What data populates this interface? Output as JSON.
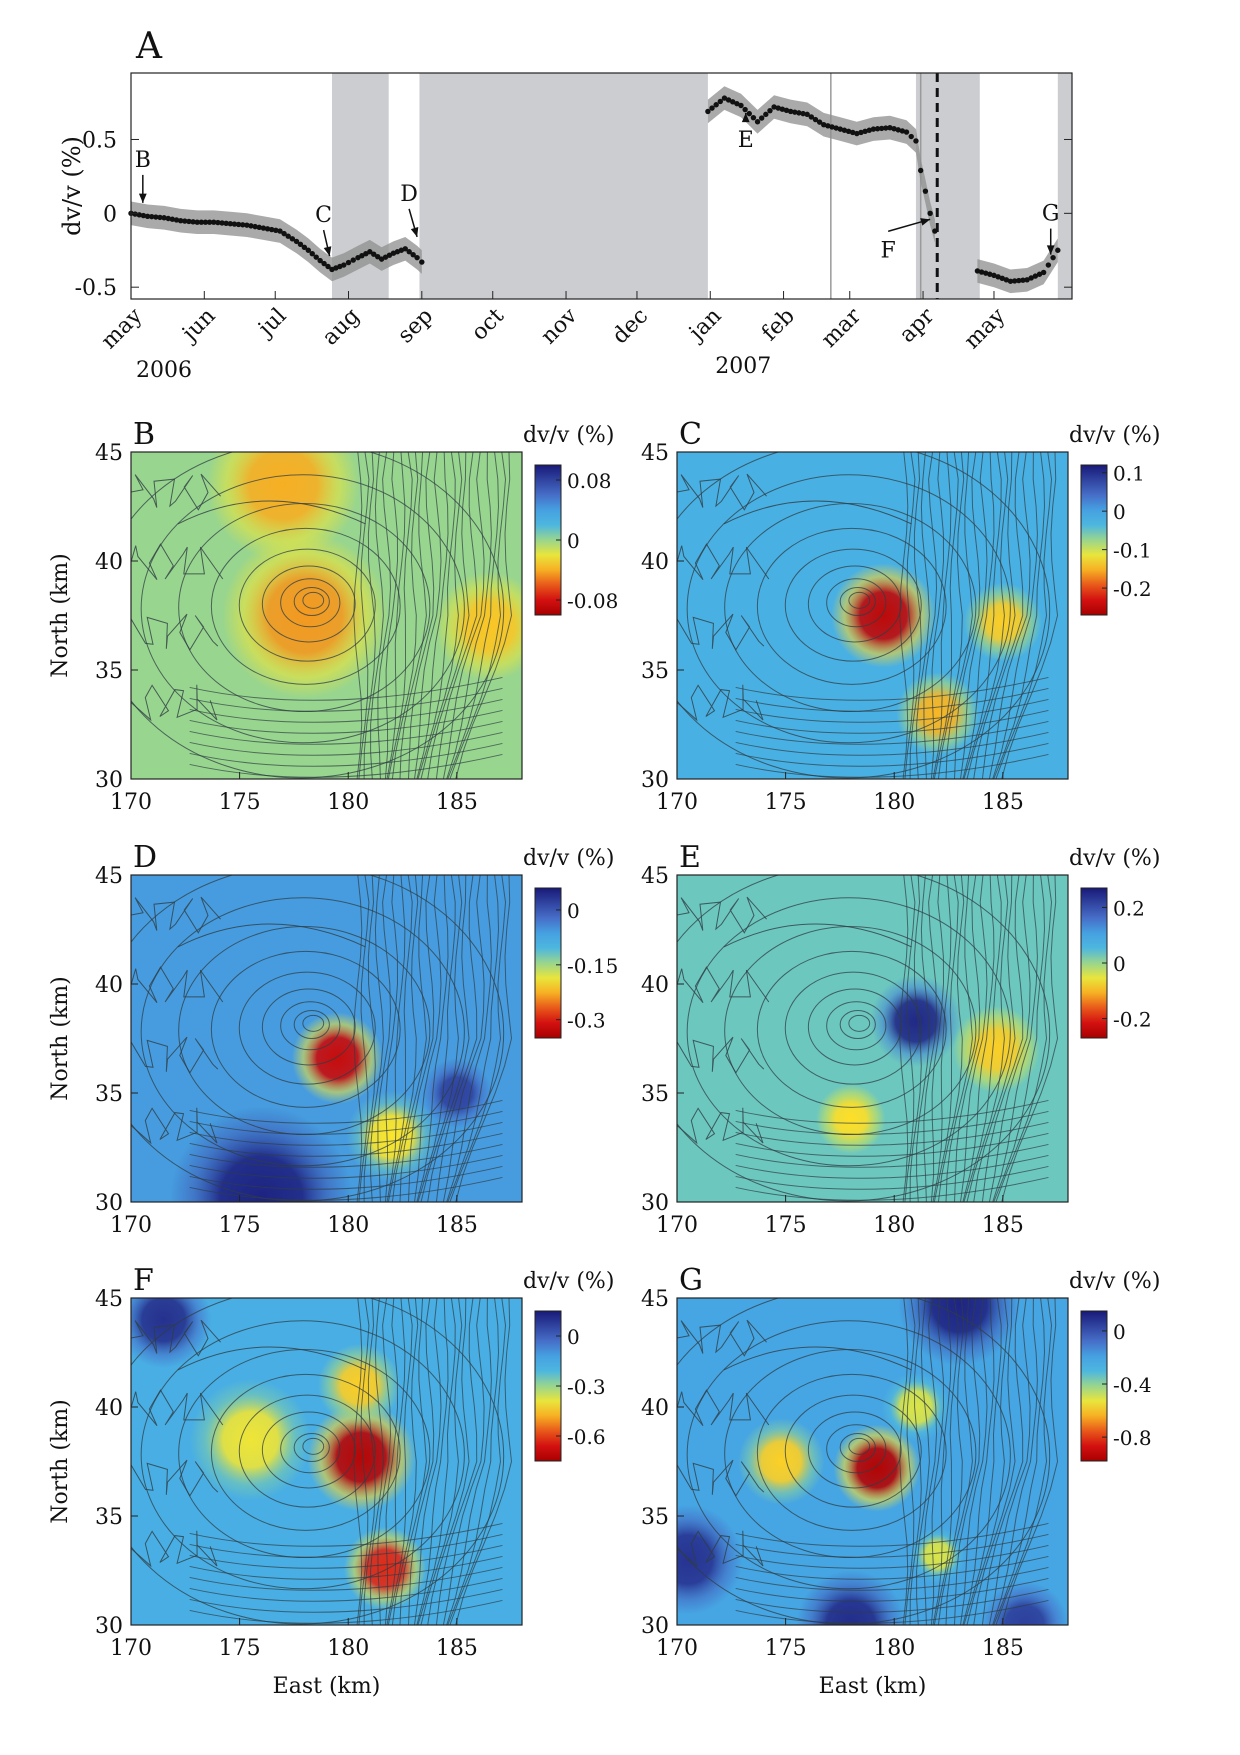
{
  "chart_data": [
    {
      "type": "line",
      "panel_label": "A",
      "ylabel": "dv/v (%)",
      "ylim": [
        -0.58,
        0.95
      ],
      "yticks": [
        -0.5,
        0,
        0.5
      ],
      "month_ticks": [
        "may",
        "jun",
        "jul",
        "aug",
        "sep",
        "oct",
        "nov",
        "dec",
        "jan",
        "feb",
        "mar",
        "apr",
        "may"
      ],
      "year_labels": [
        "2006",
        "2007"
      ],
      "shaded_periods": [
        [
          "2006-07-25",
          "2006-08-18"
        ],
        [
          "2006-08-31",
          "2006-12-31"
        ],
        [
          "2007-03-29",
          "2007-04-25"
        ],
        [
          "2007-05-28",
          "2007-06-03"
        ]
      ],
      "dashed_line_date": "2007-04-07",
      "series": [
        {
          "dates": [
            "2006-05-01",
            "2006-05-08",
            "2006-05-15",
            "2006-05-22",
            "2006-05-29",
            "2006-06-05",
            "2006-06-12",
            "2006-06-19",
            "2006-06-26",
            "2006-07-03",
            "2006-07-10",
            "2006-07-15",
            "2006-07-20",
            "2006-07-25",
            "2006-07-30",
            "2006-08-05",
            "2006-08-10",
            "2006-08-15",
            "2006-08-20",
            "2006-08-25",
            "2006-08-30",
            "2006-09-01",
            "2006-12-31",
            "2007-01-07",
            "2007-01-14",
            "2007-01-21",
            "2007-01-28",
            "2007-02-04",
            "2007-02-11",
            "2007-02-18",
            "2007-02-25",
            "2007-03-04",
            "2007-03-11",
            "2007-03-18",
            "2007-03-25",
            "2007-03-29",
            "2007-03-31",
            "2007-04-02",
            "2007-04-04",
            "2007-04-06",
            "2007-04-24",
            "2007-05-01",
            "2007-05-08",
            "2007-05-15",
            "2007-05-22",
            "2007-05-28"
          ],
          "values": [
            0.0,
            -0.02,
            -0.03,
            -0.05,
            -0.06,
            -0.06,
            -0.07,
            -0.08,
            -0.1,
            -0.12,
            -0.19,
            -0.25,
            -0.32,
            -0.38,
            -0.35,
            -0.3,
            -0.26,
            -0.31,
            -0.27,
            -0.24,
            -0.3,
            -0.33,
            0.69,
            0.78,
            0.73,
            0.62,
            0.72,
            0.69,
            0.67,
            0.6,
            0.57,
            0.54,
            0.57,
            0.58,
            0.55,
            0.49,
            0.29,
            0.15,
            0.0,
            -0.12,
            -0.39,
            -0.42,
            -0.46,
            -0.45,
            -0.4,
            -0.25
          ],
          "uncertainty": 0.08
        }
      ],
      "annotations": [
        {
          "label": "B",
          "date": "2006-05-06",
          "value": 0.03
        },
        {
          "label": "C",
          "date": "2006-07-24",
          "value": -0.33
        },
        {
          "label": "D",
          "date": "2006-08-30",
          "value": -0.2
        },
        {
          "label": "E",
          "date": "2007-01-16",
          "value": 0.72
        },
        {
          "label": "F",
          "date": "2007-04-04",
          "value": 0.0
        },
        {
          "label": "G",
          "date": "2007-05-25",
          "value": -0.32
        }
      ]
    },
    {
      "type": "heatmap",
      "panel_label": "B",
      "xlabel": "",
      "ylabel": "North (km)",
      "xlim": [
        170,
        188
      ],
      "ylim": [
        30,
        45
      ],
      "xticks": [
        "170",
        "175",
        "180",
        "185"
      ],
      "yticks": [
        "45",
        "40",
        "35",
        "30"
      ],
      "colorbar_title": "dv/v (%)",
      "colorbar_ticks": [
        "0.08",
        "0",
        "-0.08"
      ],
      "anomalies": [
        {
          "x": 178,
          "y": 37.5,
          "r": 3.8,
          "value": -0.045
        },
        {
          "x": 177,
          "y": 43.5,
          "r": 3.5,
          "value": -0.04
        },
        {
          "x": 186.5,
          "y": 37,
          "r": 2.5,
          "value": -0.035
        }
      ]
    },
    {
      "type": "heatmap",
      "panel_label": "C",
      "xlabel": "",
      "ylabel": "",
      "xlim": [
        170,
        188
      ],
      "ylim": [
        30,
        45
      ],
      "xticks": [
        "170",
        "175",
        "180",
        "185"
      ],
      "yticks": [
        "45",
        "40",
        "35",
        "30"
      ],
      "colorbar_title": "dv/v (%)",
      "colorbar_ticks": [
        "0.1",
        "0",
        "-0.1",
        "-0.2"
      ],
      "anomalies": [
        {
          "x": 179.5,
          "y": 37.5,
          "r": 2.4,
          "value": -0.25
        },
        {
          "x": 185,
          "y": 37.2,
          "r": 1.8,
          "value": -0.14
        },
        {
          "x": 182,
          "y": 33,
          "r": 1.9,
          "value": -0.15
        }
      ]
    },
    {
      "type": "heatmap",
      "panel_label": "D",
      "xlabel": "",
      "ylabel": "North (km)",
      "xlim": [
        170,
        188
      ],
      "ylim": [
        30,
        45
      ],
      "xticks": [
        "170",
        "175",
        "180",
        "185"
      ],
      "yticks": [
        "45",
        "40",
        "35",
        "30"
      ],
      "colorbar_title": "dv/v (%)",
      "colorbar_ticks": [
        "0",
        "-0.15",
        "-0.3"
      ],
      "anomalies": [
        {
          "x": 179.5,
          "y": 36.6,
          "r": 2.1,
          "value": -0.32
        },
        {
          "x": 182,
          "y": 33,
          "r": 2.1,
          "value": -0.2
        },
        {
          "x": 176,
          "y": 30.2,
          "r": 4.2,
          "value": 0.05
        },
        {
          "x": 185,
          "y": 35,
          "r": 1.6,
          "value": 0.02
        }
      ]
    },
    {
      "type": "heatmap",
      "panel_label": "E",
      "xlabel": "",
      "ylabel": "",
      "xlim": [
        170,
        188
      ],
      "ylim": [
        30,
        45
      ],
      "xticks": [
        "170",
        "175",
        "180",
        "185"
      ],
      "yticks": [
        "45",
        "40",
        "35",
        "30"
      ],
      "colorbar_title": "dv/v (%)",
      "colorbar_ticks": [
        "0.2",
        "0",
        "-0.2"
      ],
      "anomalies": [
        {
          "x": 181,
          "y": 38.3,
          "r": 2.1,
          "value": 0.25
        },
        {
          "x": 184.7,
          "y": 37,
          "r": 2.0,
          "value": -0.09
        },
        {
          "x": 178,
          "y": 33.8,
          "r": 1.6,
          "value": -0.08
        }
      ]
    },
    {
      "type": "heatmap",
      "panel_label": "F",
      "xlabel": "East (km)",
      "ylabel": "North (km)",
      "xlim": [
        170,
        188
      ],
      "ylim": [
        30,
        45
      ],
      "xticks": [
        "170",
        "175",
        "180",
        "185"
      ],
      "yticks": [
        "45",
        "40",
        "35",
        "30"
      ],
      "colorbar_title": "dv/v (%)",
      "colorbar_ticks": [
        "0",
        "-0.3",
        "-0.6"
      ],
      "anomalies": [
        {
          "x": 180.6,
          "y": 37.7,
          "r": 2.5,
          "value": -0.72
        },
        {
          "x": 181.7,
          "y": 32.6,
          "r": 1.9,
          "value": -0.62
        },
        {
          "x": 175.5,
          "y": 38.5,
          "r": 2.8,
          "value": -0.4
        },
        {
          "x": 180.5,
          "y": 41,
          "r": 1.9,
          "value": -0.45
        },
        {
          "x": 171.5,
          "y": 44,
          "r": 2.2,
          "value": 0.1
        }
      ]
    },
    {
      "type": "heatmap",
      "panel_label": "G",
      "xlabel": "East (km)",
      "ylabel": "",
      "xlim": [
        170,
        188
      ],
      "ylim": [
        30,
        45
      ],
      "xticks": [
        "170",
        "175",
        "180",
        "185"
      ],
      "yticks": [
        "45",
        "40",
        "35",
        "30"
      ],
      "colorbar_title": "dv/v (%)",
      "colorbar_ticks": [
        "0",
        "-0.4",
        "-0.8"
      ],
      "anomalies": [
        {
          "x": 179.2,
          "y": 37.2,
          "r": 2.0,
          "value": -0.95
        },
        {
          "x": 174.8,
          "y": 37.5,
          "r": 2.0,
          "value": -0.6
        },
        {
          "x": 181,
          "y": 40,
          "r": 1.6,
          "value": -0.5
        },
        {
          "x": 182,
          "y": 33.2,
          "r": 1.3,
          "value": -0.5
        },
        {
          "x": 183,
          "y": 44.7,
          "r": 2.8,
          "value": 0.12
        },
        {
          "x": 178,
          "y": 30,
          "r": 2.5,
          "value": 0.1
        },
        {
          "x": 186,
          "y": 30,
          "r": 2.0,
          "value": 0.05
        },
        {
          "x": 170.5,
          "y": 33,
          "r": 2.5,
          "value": 0.08
        }
      ]
    }
  ]
}
